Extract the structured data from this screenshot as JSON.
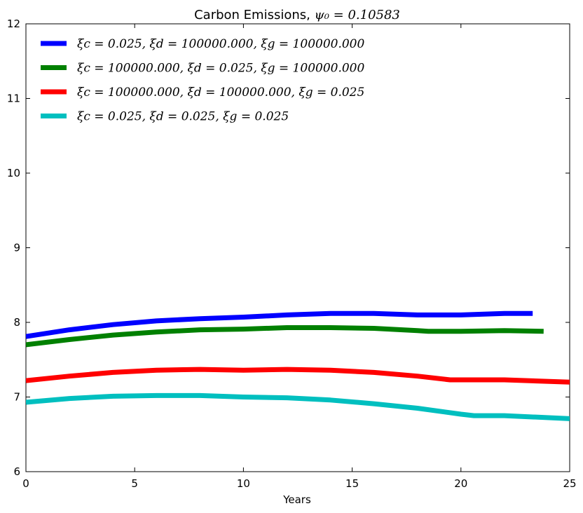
{
  "chart_data": {
    "type": "line",
    "title": "Carbon Emissions, ψ₀ = 0.10583",
    "title_parts": {
      "prefix": "Carbon Emissions, ",
      "math": "ψ₀ = 0.10583"
    },
    "xlabel": "Years",
    "ylabel": "",
    "xlim": [
      0,
      25
    ],
    "ylim": [
      6,
      12
    ],
    "xticks": [
      "0",
      "5",
      "10",
      "15",
      "20",
      "25"
    ],
    "yticks": [
      "6",
      "7",
      "8",
      "9",
      "10",
      "11",
      "12"
    ],
    "grid": false,
    "legend_position": "top-left",
    "series": [
      {
        "name": "ξc = 0.025, ξd = 100000.000, ξg = 100000.000",
        "color": "#0000ff",
        "x": [
          0,
          2,
          4,
          6,
          8,
          10,
          12,
          14,
          16,
          18,
          18.5,
          20,
          22,
          23.3
        ],
        "y": [
          7.81,
          7.9,
          7.97,
          8.02,
          8.05,
          8.07,
          8.1,
          8.12,
          8.12,
          8.1,
          8.1,
          8.1,
          8.12,
          8.12
        ]
      },
      {
        "name": "ξc = 100000.000, ξd = 0.025, ξg = 100000.000",
        "color": "#008000",
        "x": [
          0,
          2,
          4,
          6,
          8,
          10,
          12,
          14,
          16,
          18,
          18.5,
          20,
          22,
          23.8
        ],
        "y": [
          7.7,
          7.77,
          7.83,
          7.87,
          7.9,
          7.91,
          7.93,
          7.93,
          7.92,
          7.89,
          7.88,
          7.88,
          7.89,
          7.88
        ]
      },
      {
        "name": "ξc = 100000.000, ξd = 100000.000, ξg = 0.025",
        "color": "#ff0000",
        "x": [
          0,
          2,
          4,
          6,
          8,
          10,
          12,
          14,
          16,
          18,
          19.5,
          20,
          22,
          25
        ],
        "y": [
          7.22,
          7.28,
          7.33,
          7.36,
          7.37,
          7.36,
          7.37,
          7.36,
          7.33,
          7.28,
          7.23,
          7.23,
          7.23,
          7.2
        ]
      },
      {
        "name": "ξc = 0.025, ξd = 0.025, ξg = 0.025",
        "color": "#00bfbf",
        "x": [
          0,
          2,
          4,
          6,
          8,
          10,
          12,
          14,
          16,
          18,
          20,
          20.6,
          22,
          25
        ],
        "y": [
          6.93,
          6.98,
          7.01,
          7.02,
          7.02,
          7.0,
          6.99,
          6.96,
          6.91,
          6.85,
          6.77,
          6.75,
          6.75,
          6.71
        ]
      }
    ]
  }
}
